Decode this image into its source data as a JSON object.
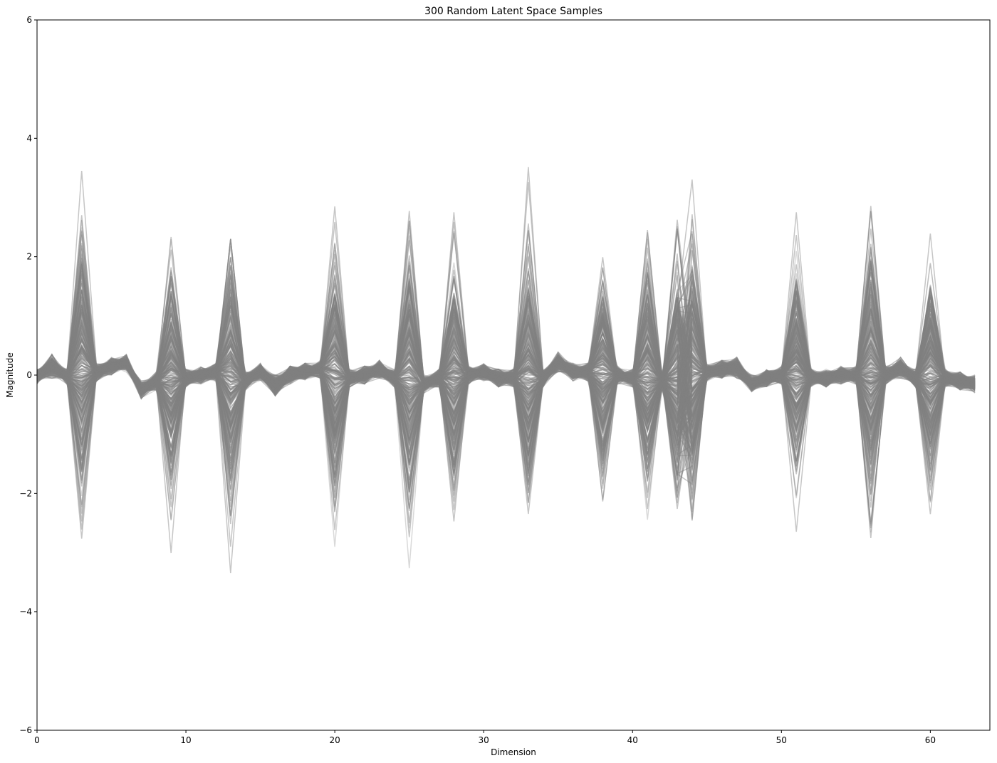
{
  "chart_data": {
    "type": "line",
    "title": "300 Random Latent Space Samples",
    "xlabel": "Dimension",
    "ylabel": "Magnitude",
    "xlim": [
      0,
      64
    ],
    "ylim": [
      -6,
      6
    ],
    "xticks": [
      "0",
      "10",
      "20",
      "30",
      "40",
      "50",
      "60"
    ],
    "yticks": [
      "−6",
      "−4",
      "−2",
      "0",
      "2",
      "4",
      "6"
    ],
    "grid": false,
    "n_samples": 300,
    "line_color": "#808080",
    "dimensions": 64,
    "envelope_max": [
      0.1,
      0.35,
      0.1,
      3.45,
      0.2,
      0.3,
      0.35,
      -0.1,
      0.05,
      3.1,
      0.1,
      0.15,
      0.2,
      2.3,
      0.05,
      0.2,
      0.0,
      0.15,
      0.2,
      0.25,
      2.85,
      0.1,
      0.15,
      0.25,
      0.1,
      3.3,
      0.0,
      0.1,
      2.75,
      0.15,
      0.2,
      0.1,
      0.1,
      3.55,
      0.1,
      0.4,
      0.2,
      0.2,
      2.55,
      0.15,
      0.1,
      2.7,
      0.05,
      3.05,
      3.6,
      0.2,
      0.25,
      0.3,
      0.0,
      0.1,
      0.15,
      2.75,
      0.1,
      0.1,
      0.15,
      0.15,
      4.0,
      0.15,
      0.3,
      0.1,
      3.3,
      0.1,
      0.05,
      0.0
    ],
    "envelope_min": [
      -0.15,
      -0.05,
      -0.15,
      -3.8,
      -0.1,
      0.0,
      0.05,
      -0.4,
      -0.25,
      -3.2,
      -0.2,
      -0.15,
      -0.1,
      -3.55,
      -0.25,
      -0.1,
      -0.35,
      -0.15,
      -0.1,
      -0.05,
      -3.55,
      -0.2,
      -0.15,
      -0.05,
      -0.2,
      -3.9,
      -0.3,
      -0.2,
      -3.4,
      -0.15,
      -0.1,
      -0.2,
      -0.2,
      -3.15,
      -0.2,
      0.05,
      -0.1,
      -0.1,
      -2.75,
      -0.15,
      -0.2,
      -3.55,
      -0.25,
      -3.45,
      -3.45,
      -0.1,
      -0.05,
      -0.05,
      -0.3,
      -0.2,
      -0.15,
      -3.05,
      -0.2,
      -0.2,
      -0.15,
      -0.15,
      -3.2,
      -0.15,
      -0.05,
      -0.2,
      -2.95,
      -0.2,
      -0.25,
      -0.3
    ]
  }
}
